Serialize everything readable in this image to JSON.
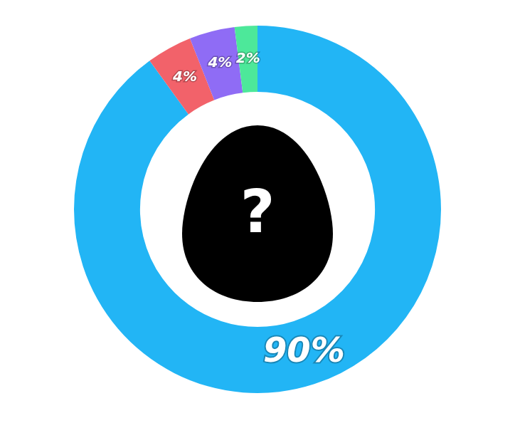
{
  "chart_data": {
    "type": "doughnut",
    "values": [
      90,
      4,
      4,
      2
    ],
    "value_labels": [
      "90%",
      "4%",
      "4%",
      "2%"
    ],
    "colors": [
      "#22b5f5",
      "#f2626a",
      "#8f6cf5",
      "#4de89a"
    ],
    "data_labels": true,
    "annotation": "?"
  }
}
